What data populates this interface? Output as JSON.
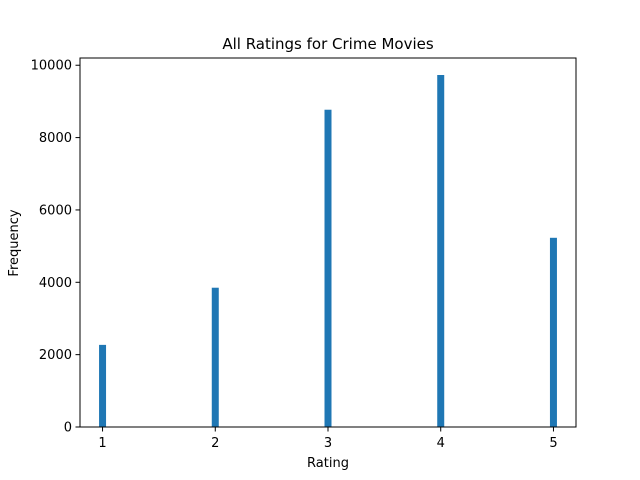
{
  "chart_data": {
    "type": "bar",
    "title": "All Ratings for Crime Movies",
    "xlabel": "Rating",
    "ylabel": "Frequency",
    "categories": [
      1,
      2,
      3,
      4,
      5
    ],
    "values": [
      2270,
      3850,
      8770,
      9730,
      5230
    ],
    "xlim": [
      0.8,
      5.2
    ],
    "ylim": [
      0,
      10200
    ],
    "xticks": [
      "1",
      "2",
      "3",
      "4",
      "5"
    ],
    "yticks": [
      0,
      2000,
      4000,
      6000,
      8000,
      10000
    ],
    "ytick_labels": [
      "0",
      "2000",
      "4000",
      "6000",
      "8000",
      "10000"
    ],
    "bar_color": "#1f77b4",
    "grid": false,
    "legend": "none"
  }
}
